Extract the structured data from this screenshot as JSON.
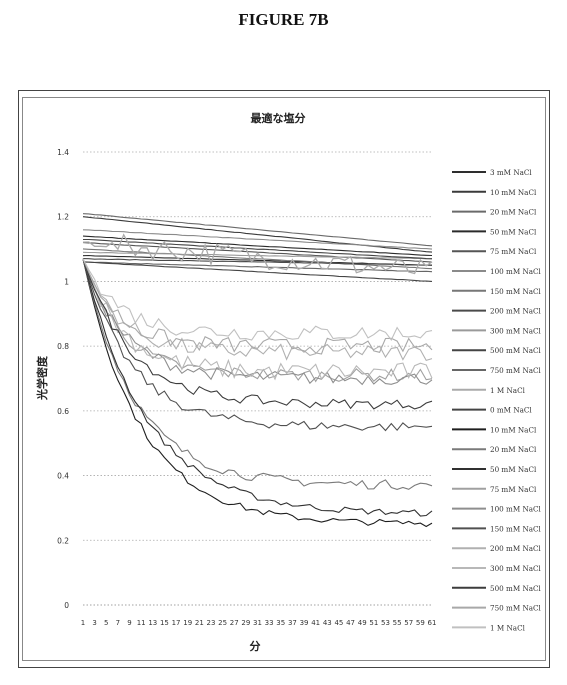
{
  "figure_label": "FIGURE 7B",
  "chart_data": {
    "type": "line",
    "title": "最適な塩分",
    "xlabel": "分",
    "ylabel": "光学密度",
    "ylim": [
      0,
      1.4
    ],
    "yticks": [
      "0",
      "0.2",
      "0.4",
      "0.6",
      "0.8",
      "1",
      "1.2",
      "1.4"
    ],
    "xlim": [
      1,
      61
    ],
    "xticks": [
      "1",
      "3",
      "5",
      "7",
      "9",
      "11",
      "13",
      "15",
      "17",
      "19",
      "21",
      "23",
      "25",
      "27",
      "29",
      "31",
      "33",
      "35",
      "37",
      "39",
      "41",
      "43",
      "45",
      "47",
      "49",
      "51",
      "53",
      "55",
      "57",
      "59",
      "61"
    ],
    "grid": true,
    "legend_position": "right",
    "series": [
      {
        "name": "3 mM NaCl",
        "color": "#2e2e2e",
        "start": 1.08,
        "end": 1.05,
        "kind": "flat",
        "noise": 0.004
      },
      {
        "name": "10 mM NaCl",
        "color": "#3a3a3a",
        "start": 1.2,
        "end": 1.09,
        "kind": "flat",
        "noise": 0.004
      },
      {
        "name": "20 mM NaCl",
        "color": "#6a6a6a",
        "start": 1.21,
        "end": 1.11,
        "kind": "flat",
        "noise": 0.004
      },
      {
        "name": "50 mM NaCl",
        "color": "#2a2a2a",
        "start": 1.14,
        "end": 1.08,
        "kind": "flat",
        "noise": 0.004
      },
      {
        "name": "75 mM NaCl",
        "color": "#555555",
        "start": 1.12,
        "end": 1.06,
        "kind": "flat",
        "noise": 0.004
      },
      {
        "name": "100 mM NaCl",
        "color": "#8a8a8a",
        "start": 1.16,
        "end": 1.1,
        "kind": "flat",
        "noise": 0.005
      },
      {
        "name": "150 mM NaCl",
        "color": "#777777",
        "start": 1.1,
        "end": 1.04,
        "kind": "flat",
        "noise": 0.005
      },
      {
        "name": "200 mM NaCl",
        "color": "#4a4a4a",
        "start": 1.07,
        "end": 1.05,
        "kind": "flat",
        "noise": 0.005
      },
      {
        "name": "300 mM NaCl",
        "color": "#9a9a9a",
        "start": 1.09,
        "end": 1.07,
        "kind": "flat",
        "noise": 0.006
      },
      {
        "name": "500 mM NaCl",
        "color": "#444444",
        "start": 1.13,
        "end": 1.07,
        "kind": "flat",
        "noise": 0.005
      },
      {
        "name": "750 mM NaCl",
        "color": "#666666",
        "start": 1.06,
        "end": 1.03,
        "kind": "flat",
        "noise": 0.005
      },
      {
        "name": "1 M NaCl",
        "color": "#aaaaaa",
        "start": 1.12,
        "end": 1.03,
        "kind": "noisy",
        "noise": 0.07
      },
      {
        "name": "0 mM NaCl",
        "color": "#444444",
        "start": 1.06,
        "end": 1.0,
        "kind": "flat",
        "noise": 0.004
      },
      {
        "name": "10 mM NaCl",
        "color": "#1e1e1e",
        "start": 1.07,
        "end": 0.25,
        "kind": "decay",
        "k": 0.1,
        "noise": 0.02
      },
      {
        "name": "20 mM NaCl",
        "color": "#7a7a7a",
        "start": 1.07,
        "end": 0.37,
        "kind": "decay",
        "k": 0.11,
        "noise": 0.03
      },
      {
        "name": "50 mM NaCl",
        "color": "#303030",
        "start": 1.07,
        "end": 0.28,
        "kind": "decay",
        "k": 0.09,
        "noise": 0.02
      },
      {
        "name": "75 mM NaCl",
        "color": "#a0a0a0",
        "start": 1.07,
        "end": 0.71,
        "kind": "decay",
        "k": 0.15,
        "noise": 0.04
      },
      {
        "name": "100 mM NaCl",
        "color": "#8e8e8e",
        "start": 1.07,
        "end": 0.7,
        "kind": "decay",
        "k": 0.14,
        "noise": 0.04
      },
      {
        "name": "150 mM NaCl",
        "color": "#505050",
        "start": 1.07,
        "end": 0.55,
        "kind": "decay",
        "k": 0.12,
        "noise": 0.03
      },
      {
        "name": "200 mM NaCl",
        "color": "#b0b0b0",
        "start": 1.07,
        "end": 0.78,
        "kind": "decay",
        "k": 0.16,
        "noise": 0.05
      },
      {
        "name": "300 mM NaCl",
        "color": "#b8b8b8",
        "start": 1.07,
        "end": 0.72,
        "kind": "decay",
        "k": 0.15,
        "noise": 0.06
      },
      {
        "name": "500 mM NaCl",
        "color": "#3c3c3c",
        "start": 1.07,
        "end": 0.62,
        "kind": "decay",
        "k": 0.12,
        "noise": 0.03
      },
      {
        "name": "750 mM NaCl",
        "color": "#a8a8a8",
        "start": 1.07,
        "end": 0.8,
        "kind": "decay",
        "k": 0.17,
        "noise": 0.05
      },
      {
        "name": "1 M NaCl",
        "color": "#c0c0c0",
        "start": 1.07,
        "end": 0.84,
        "kind": "decay",
        "k": 0.16,
        "noise": 0.05
      }
    ]
  }
}
